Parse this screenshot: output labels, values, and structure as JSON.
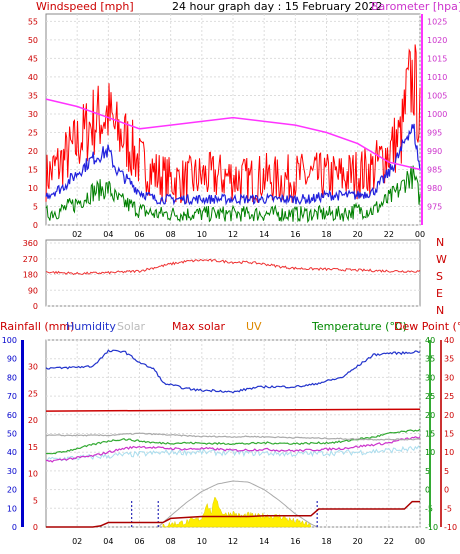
{
  "header": {
    "windspeed_label": "Windspeed [mph]",
    "title": "24 hour graph day : 15 February 2022",
    "barometer_label": "Barometer [hpa]"
  },
  "lower_header": {
    "rainfall": "Rainfall (mm)",
    "humidity": "Humidity",
    "solar": "Solar",
    "max_solar": "Max solar",
    "uv": "UV",
    "temperature": "Temperature (°C)",
    "dew_point": "Dew Point (°C)"
  },
  "colors": {
    "gust": "#ff0000",
    "avg_wind": "#2222dd",
    "min_wind": "#008000",
    "barometer": "#ff33ff",
    "direction": "#ee3333",
    "humidity": "#2233cc",
    "solar_line": "#aaaaaa",
    "max_solar": "#cc0000",
    "uv": "#dd8800",
    "temperature": "#33aa33",
    "dew_point": "#cc33cc",
    "rainfall_axis": "#0000cc",
    "solar_fill": "#ffee00"
  },
  "chart_data": [
    {
      "type": "line",
      "x_ticks": [
        "02",
        "04",
        "06",
        "08",
        "10",
        "12",
        "14",
        "16",
        "18",
        "20",
        "22",
        "00"
      ],
      "y_left_ticks": [
        "0",
        "5",
        "10",
        "15",
        "20",
        "25",
        "30",
        "35",
        "40",
        "45",
        "50",
        "55"
      ],
      "ylim_left": [
        0,
        57
      ],
      "y_right_ticks": [
        "975",
        "980",
        "985",
        "990",
        "995",
        "1000",
        "1005",
        "1010",
        "1015",
        "1020",
        "1025"
      ],
      "ylim_right": [
        970,
        1027
      ],
      "series": [
        {
          "key": "gust",
          "x": [
            0,
            1,
            2,
            3,
            4,
            4.5,
            5,
            6,
            7,
            8,
            9,
            10,
            11,
            12,
            13,
            14,
            15,
            16,
            17,
            18,
            19,
            20,
            21,
            22,
            22.8,
            23.2,
            23.6,
            24
          ],
          "values": [
            13,
            17,
            22,
            28,
            30,
            25,
            24,
            17,
            14,
            12,
            12,
            13,
            13,
            13,
            12,
            13,
            12,
            13,
            13,
            13,
            13,
            14,
            15,
            20,
            24,
            36,
            40,
            28
          ]
        },
        {
          "key": "avg_wind",
          "x": [
            0,
            1,
            2,
            3,
            4,
            4.5,
            5,
            6,
            7,
            8,
            9,
            10,
            11,
            12,
            13,
            14,
            15,
            16,
            17,
            18,
            19,
            20,
            21,
            22,
            22.8,
            23.2,
            23.6,
            24
          ],
          "values": [
            8,
            10,
            14,
            18,
            20,
            15,
            13,
            9,
            7,
            7,
            7,
            7,
            7,
            7,
            7,
            7,
            7,
            7,
            7,
            8,
            8,
            8,
            9,
            14,
            20,
            25,
            26,
            15
          ]
        },
        {
          "key": "min_wind",
          "x": [
            0,
            1,
            2,
            3,
            4,
            4.5,
            5,
            6,
            7,
            8,
            9,
            10,
            11,
            12,
            13,
            14,
            15,
            16,
            17,
            18,
            19,
            20,
            21,
            22,
            22.8,
            23.2,
            23.6,
            24
          ],
          "values": [
            3,
            4,
            6,
            9,
            10,
            7,
            6,
            4,
            3,
            3,
            3,
            3,
            3,
            3,
            3,
            3,
            3,
            3,
            3,
            3,
            3,
            4,
            4,
            7,
            10,
            13,
            13,
            7
          ]
        },
        {
          "key": "barometer",
          "x": [
            0,
            2,
            4,
            6,
            8,
            10,
            12,
            14,
            16,
            18,
            20,
            22,
            24
          ],
          "values": [
            1004,
            1002,
            999,
            996,
            997,
            998,
            999,
            998,
            997,
            995,
            992,
            987,
            985
          ]
        }
      ]
    },
    {
      "type": "line",
      "y_ticks": [
        "0",
        "90",
        "180",
        "270",
        "360"
      ],
      "ylim": [
        0,
        360
      ],
      "compass": [
        "N",
        "W",
        "S",
        "E",
        "N"
      ],
      "series": [
        {
          "key": "direction",
          "x": [
            0,
            2,
            4,
            6,
            7,
            8,
            9,
            10,
            11,
            12,
            13,
            14,
            15,
            16,
            18,
            20,
            22,
            24
          ],
          "values": [
            195,
            185,
            190,
            200,
            220,
            240,
            255,
            262,
            258,
            250,
            250,
            240,
            225,
            215,
            210,
            205,
            200,
            198
          ]
        }
      ]
    },
    {
      "type": "line",
      "y_left_humidity_ticks": [
        "0",
        "10",
        "20",
        "30",
        "40",
        "50",
        "60",
        "70",
        "80",
        "90",
        "100"
      ],
      "y_left_rain_ticks": [
        "0",
        "5",
        "10",
        "15",
        "20",
        "25",
        "30"
      ],
      "y_right_temp_ticks": [
        "40",
        "35",
        "30",
        "25",
        "20",
        "15",
        "10",
        "5",
        "0",
        "-5",
        "-10"
      ],
      "ylim_temp": [
        -10,
        40
      ],
      "series": [
        {
          "key": "humidity",
          "x": [
            0,
            1,
            3,
            4,
            5,
            6,
            7,
            7.5,
            8,
            9,
            10,
            11,
            12,
            13,
            14,
            15,
            16,
            17,
            18,
            19,
            20,
            21,
            22,
            23,
            24
          ],
          "values": [
            85,
            85,
            86,
            94,
            94,
            88,
            84,
            77,
            76,
            74,
            73,
            73,
            72,
            74,
            75,
            75,
            75,
            76,
            78,
            80,
            86,
            92,
            93,
            93,
            94
          ]
        },
        {
          "key": "max_solar",
          "x": [
            0,
            24
          ],
          "values": [
            21,
            21.5
          ]
        },
        {
          "key": "solar_line",
          "x": [
            0,
            4,
            5,
            6,
            7,
            8,
            9,
            10,
            11,
            12,
            13,
            14,
            15,
            16,
            17,
            18,
            19,
            20,
            21,
            22,
            23,
            24
          ],
          "values": [
            14.5,
            14.5,
            14.8,
            15,
            14.8,
            14.6,
            14.4,
            14.2,
            14.2,
            14.1,
            14.2,
            14.1,
            14.0,
            13.9,
            13.8,
            13.7,
            13.6,
            13.5,
            13.4,
            13.4,
            13.4,
            13.5
          ]
        },
        {
          "key": "temperature",
          "x": [
            0,
            1,
            2,
            3,
            4,
            5,
            6,
            7,
            8,
            9,
            10,
            11,
            12,
            13,
            14,
            15,
            16,
            17,
            18,
            19,
            20,
            21,
            22,
            23,
            24
          ],
          "values": [
            9.5,
            10,
            11,
            12,
            13,
            13.5,
            13,
            12.5,
            12.4,
            12.5,
            12.4,
            12.3,
            12.3,
            12.3,
            12.5,
            12.4,
            12.3,
            12.4,
            12.5,
            12.8,
            13.5,
            14,
            15,
            15.5,
            16
          ]
        },
        {
          "key": "dew_point",
          "x": [
            0,
            1,
            2,
            3,
            4,
            5,
            6,
            7,
            8,
            9,
            10,
            11,
            12,
            13,
            14,
            15,
            16,
            17,
            18,
            19,
            20,
            21,
            22,
            23,
            24
          ],
          "values": [
            7.5,
            8,
            8.5,
            9,
            10,
            11,
            11.5,
            11.2,
            11,
            10.8,
            11,
            10.8,
            10.5,
            10.6,
            10.8,
            10.5,
            10.4,
            10.6,
            10.8,
            11,
            11.5,
            12,
            12.5,
            13.5,
            14
          ]
        },
        {
          "key": "solar_light",
          "x": [
            0,
            2,
            4,
            6,
            8,
            10,
            12,
            14,
            16,
            18,
            20,
            22,
            24
          ],
          "values": [
            8,
            8.5,
            9,
            9.5,
            10,
            10,
            9.8,
            9.8,
            9.5,
            9.8,
            10,
            10.5,
            11
          ]
        },
        {
          "key": "max_solar_curve",
          "x": [
            7.2,
            8,
            9,
            10,
            11,
            12,
            13,
            14,
            15,
            16,
            17,
            17.4
          ],
          "values": [
            0,
            3,
            6.5,
            9.5,
            11.5,
            12.3,
            12,
            10,
            7,
            3.5,
            0.8,
            0
          ]
        },
        {
          "key": "rainfall",
          "x": [
            0,
            3,
            3.5,
            4,
            6,
            7.5,
            8,
            10,
            13,
            14,
            17,
            17.5,
            23,
            23.5,
            24
          ],
          "values": [
            0,
            0,
            0.3,
            1.2,
            1.2,
            1.2,
            2.3,
            2.8,
            2.8,
            3,
            3,
            4.8,
            4.8,
            6.8,
            6.8
          ]
        },
        {
          "key": "solar_fill",
          "x": [
            7.5,
            8,
            9,
            10,
            10.3,
            10.6,
            10.9,
            11.2,
            11.5,
            12,
            12.5,
            13,
            13.5,
            14,
            14.5,
            15,
            15.5,
            16,
            16.5,
            17
          ],
          "values": [
            0,
            0.5,
            1,
            2,
            6,
            3.5,
            8,
            4,
            3,
            3.5,
            2.5,
            3,
            2.5,
            2.8,
            2.5,
            2.5,
            1.8,
            1.2,
            0.8,
            0
          ]
        }
      ],
      "markers": [
        5.5,
        7.2,
        17.4
      ]
    }
  ]
}
